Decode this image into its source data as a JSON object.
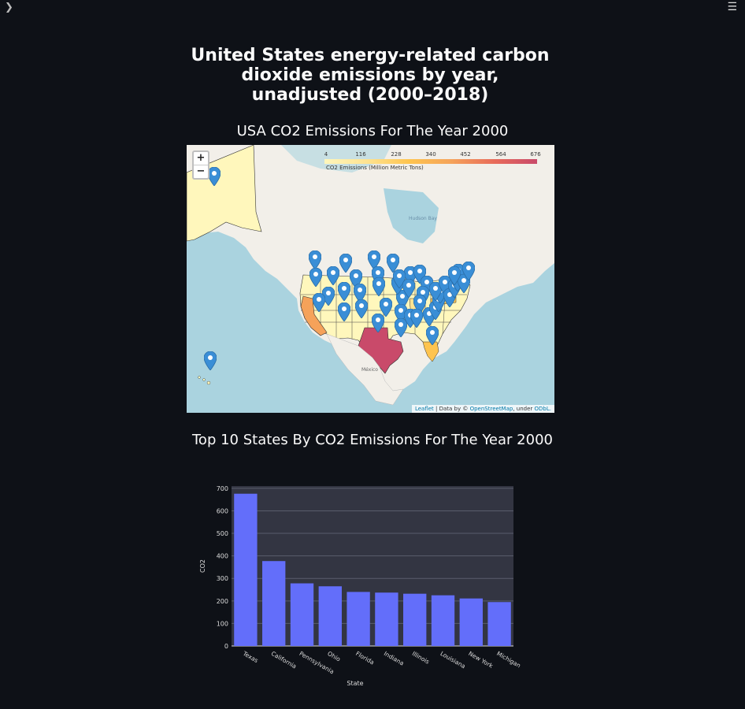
{
  "app": {
    "sidebar_toggle_icon": "chevron-right-icon",
    "menu_icon": "hamburger-menu-icon"
  },
  "title": "United States energy-related carbon dioxide emissions by year, unadjusted (2000–2018)",
  "map_section": {
    "title": "USA CO2 Emissions For The Year 2000",
    "zoom_in": "+",
    "zoom_out": "−",
    "legend_ticks": [
      "4",
      "116",
      "228",
      "340",
      "452",
      "564",
      "676"
    ],
    "legend_caption": "CO2 Emissions (Million Metric Tons)",
    "attribution_leaflet": "Leaflet",
    "attribution_mid": " | Data by © ",
    "attribution_osm": "OpenStreetMap",
    "attribution_under": ", under ",
    "attribution_odbl": "ODbL.",
    "label_hudson_bay": "Hudson Bay",
    "label_mexico": "México",
    "colors": {
      "low": "#fff7bc",
      "mid": "#fec44f",
      "high": "#c94a6a",
      "marker": "#3a8ed6"
    }
  },
  "chart_section": {
    "title": "Top 10 States By CO2 Emissions For The Year 2000"
  },
  "chart_data": {
    "type": "bar",
    "categories": [
      "Texas",
      "California",
      "Pennsylvania",
      "Ohio",
      "Florida",
      "Indiana",
      "Illinois",
      "Louisiana",
      "New York",
      "Michigan"
    ],
    "values": [
      676,
      377,
      278,
      265,
      240,
      237,
      232,
      225,
      211,
      195
    ],
    "xlabel": "State",
    "ylabel": "CO2",
    "ylim": [
      0,
      710
    ],
    "yticks": [
      0,
      100,
      200,
      300,
      400,
      500,
      600,
      700
    ],
    "bar_color": "#636efa",
    "plot_bg": "#333542",
    "grid": true
  }
}
